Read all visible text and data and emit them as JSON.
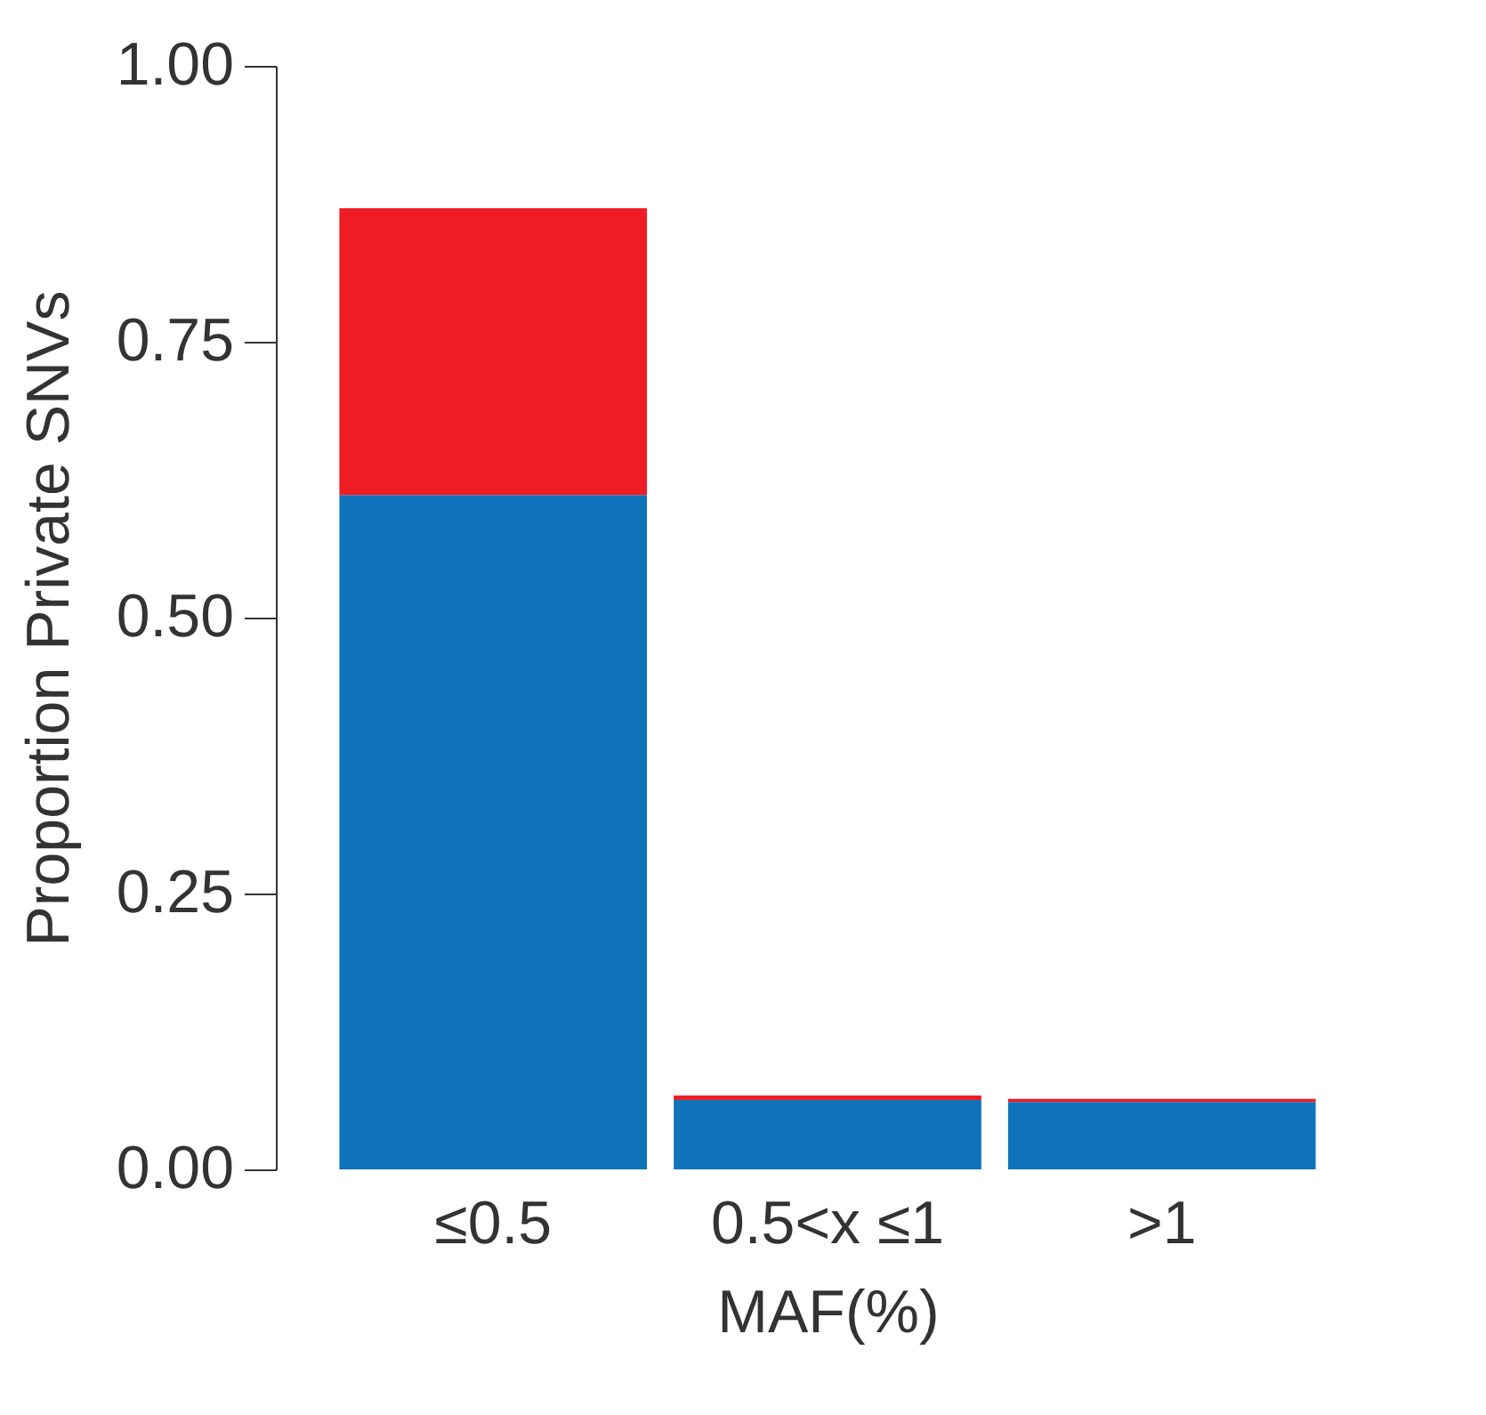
{
  "chart_data": {
    "type": "bar",
    "stacked": true,
    "xlabel": "MAF(%)",
    "ylabel": "Proportion Private SNVs",
    "categories": [
      "≤0.5",
      "0.5<x ≤1",
      ">1"
    ],
    "series": [
      {
        "color": "#1174bb",
        "values": [
          0.611,
          0.063,
          0.061
        ]
      },
      {
        "color": "#ee1c25",
        "values": [
          0.26,
          0.004,
          0.003
        ]
      }
    ],
    "ylim": [
      0,
      1
    ],
    "yticks": [
      {
        "value": 0,
        "label": "0.00"
      },
      {
        "value": 0.25,
        "label": "0.25"
      },
      {
        "value": 0.5,
        "label": "0.50"
      },
      {
        "value": 0.75,
        "label": "0.75"
      },
      {
        "value": 1,
        "label": "1.00"
      }
    ],
    "grid": false
  }
}
